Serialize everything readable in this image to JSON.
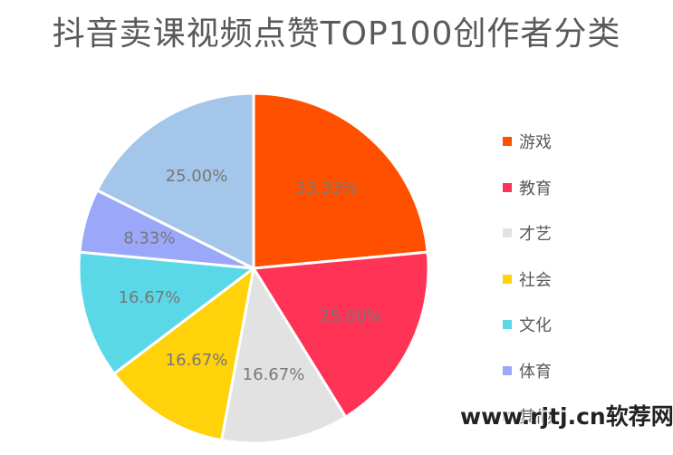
{
  "title": "抖音卖课视频点赞TOP100创作者分类",
  "watermark": "www.rjtj.cn软荐网",
  "chart_data": {
    "type": "pie",
    "title": "抖音卖课视频点赞TOP100创作者分类",
    "legend_position": "right",
    "slices": [
      {
        "label": "游戏",
        "value": 33.33,
        "value_label": "33.33%",
        "color": "#FF5000"
      },
      {
        "label": "教育",
        "value": 25.0,
        "value_label": "25.00%",
        "color": "#FF3355"
      },
      {
        "label": "才艺",
        "value": 16.67,
        "value_label": "16.67%",
        "color": "#E1E2E1"
      },
      {
        "label": "社会",
        "value": 16.67,
        "value_label": "16.67%",
        "color": "#FFD20A"
      },
      {
        "label": "文化",
        "value": 16.67,
        "value_label": "16.67%",
        "color": "#5AD8E8"
      },
      {
        "label": "体育",
        "value": 8.33,
        "value_label": "8.33%",
        "color": "#9BA8FA"
      },
      {
        "label": "其他",
        "value": 25.0,
        "value_label": "25.00%",
        "color": "#A4C6EA"
      }
    ]
  }
}
